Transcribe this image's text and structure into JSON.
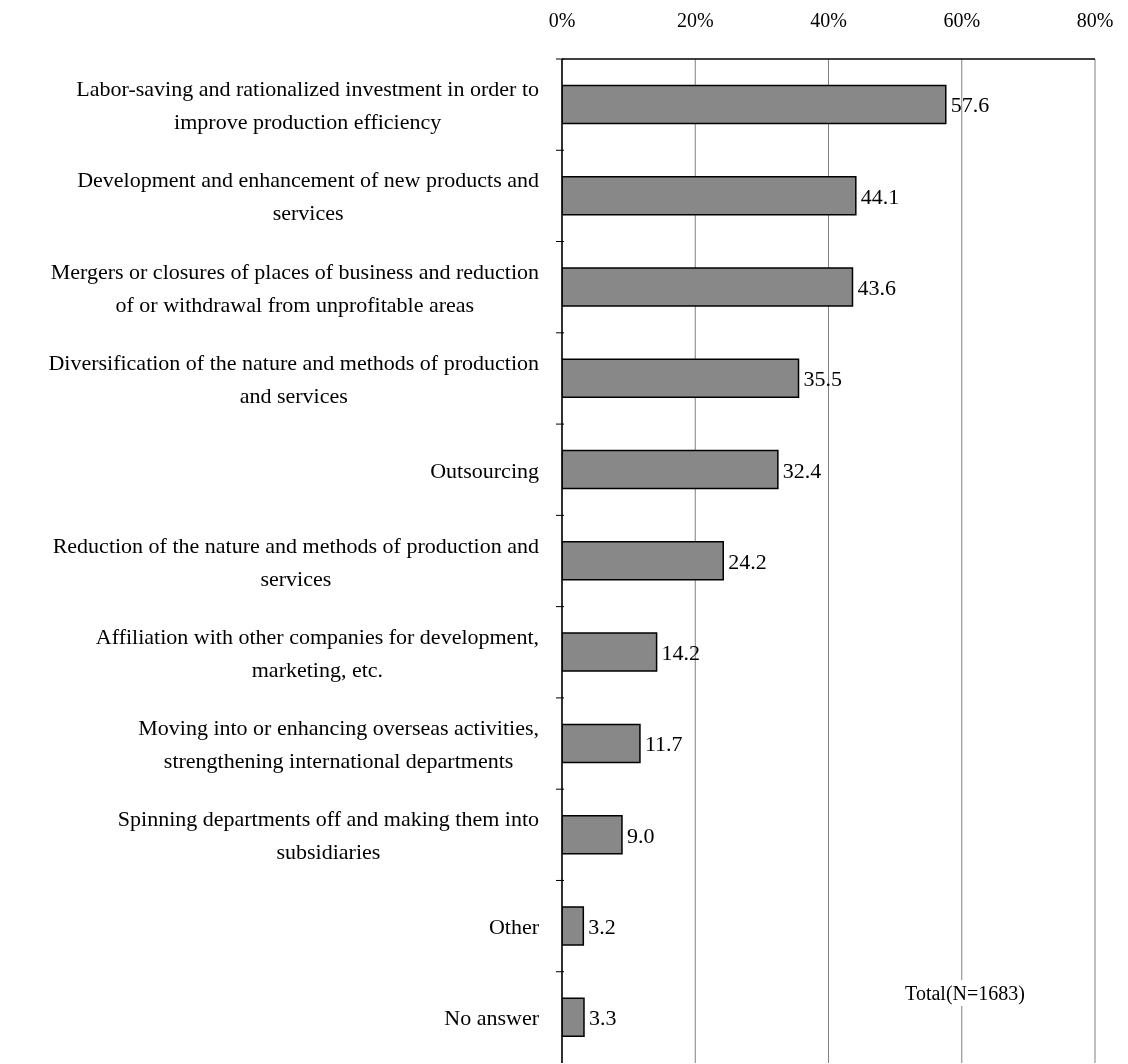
{
  "chart_data": {
    "type": "bar",
    "orientation": "horizontal",
    "categories": [
      "Labor-saving and rationalized investment in order to improve production efficiency",
      "Development and enhancement of new products and services",
      "Mergers or closures of places of business and reduction of or withdrawal from unprofitable areas",
      "Diversification of the nature and methods of production and services",
      "Outsourcing",
      "Reduction of the nature and methods of production and services",
      "Affiliation with other companies for development, marketing, etc.",
      "Moving into or enhancing overseas activities, strengthening international departments",
      "Spinning departments off and making them into subsidiaries",
      "Other",
      "No answer"
    ],
    "values": [
      57.6,
      44.1,
      43.6,
      35.5,
      32.4,
      24.2,
      14.2,
      11.7,
      9.0,
      3.2,
      3.3
    ],
    "value_labels": [
      "57.6",
      "44.1",
      "43.6",
      "35.5",
      "32.4",
      "24.2",
      "14.2",
      "11.7",
      "9.0",
      "3.2",
      "3.3"
    ],
    "color": "#888888",
    "xlim": [
      0,
      80
    ],
    "xticks": [
      {
        "value": 0,
        "label": "0%"
      },
      {
        "value": 20,
        "label": "20%"
      },
      {
        "value": 40,
        "label": "40%"
      },
      {
        "value": 60,
        "label": "60%"
      },
      {
        "value": 80,
        "label": "80%"
      }
    ],
    "grid": "x",
    "annotations": [
      "Total(N=1683)"
    ]
  }
}
